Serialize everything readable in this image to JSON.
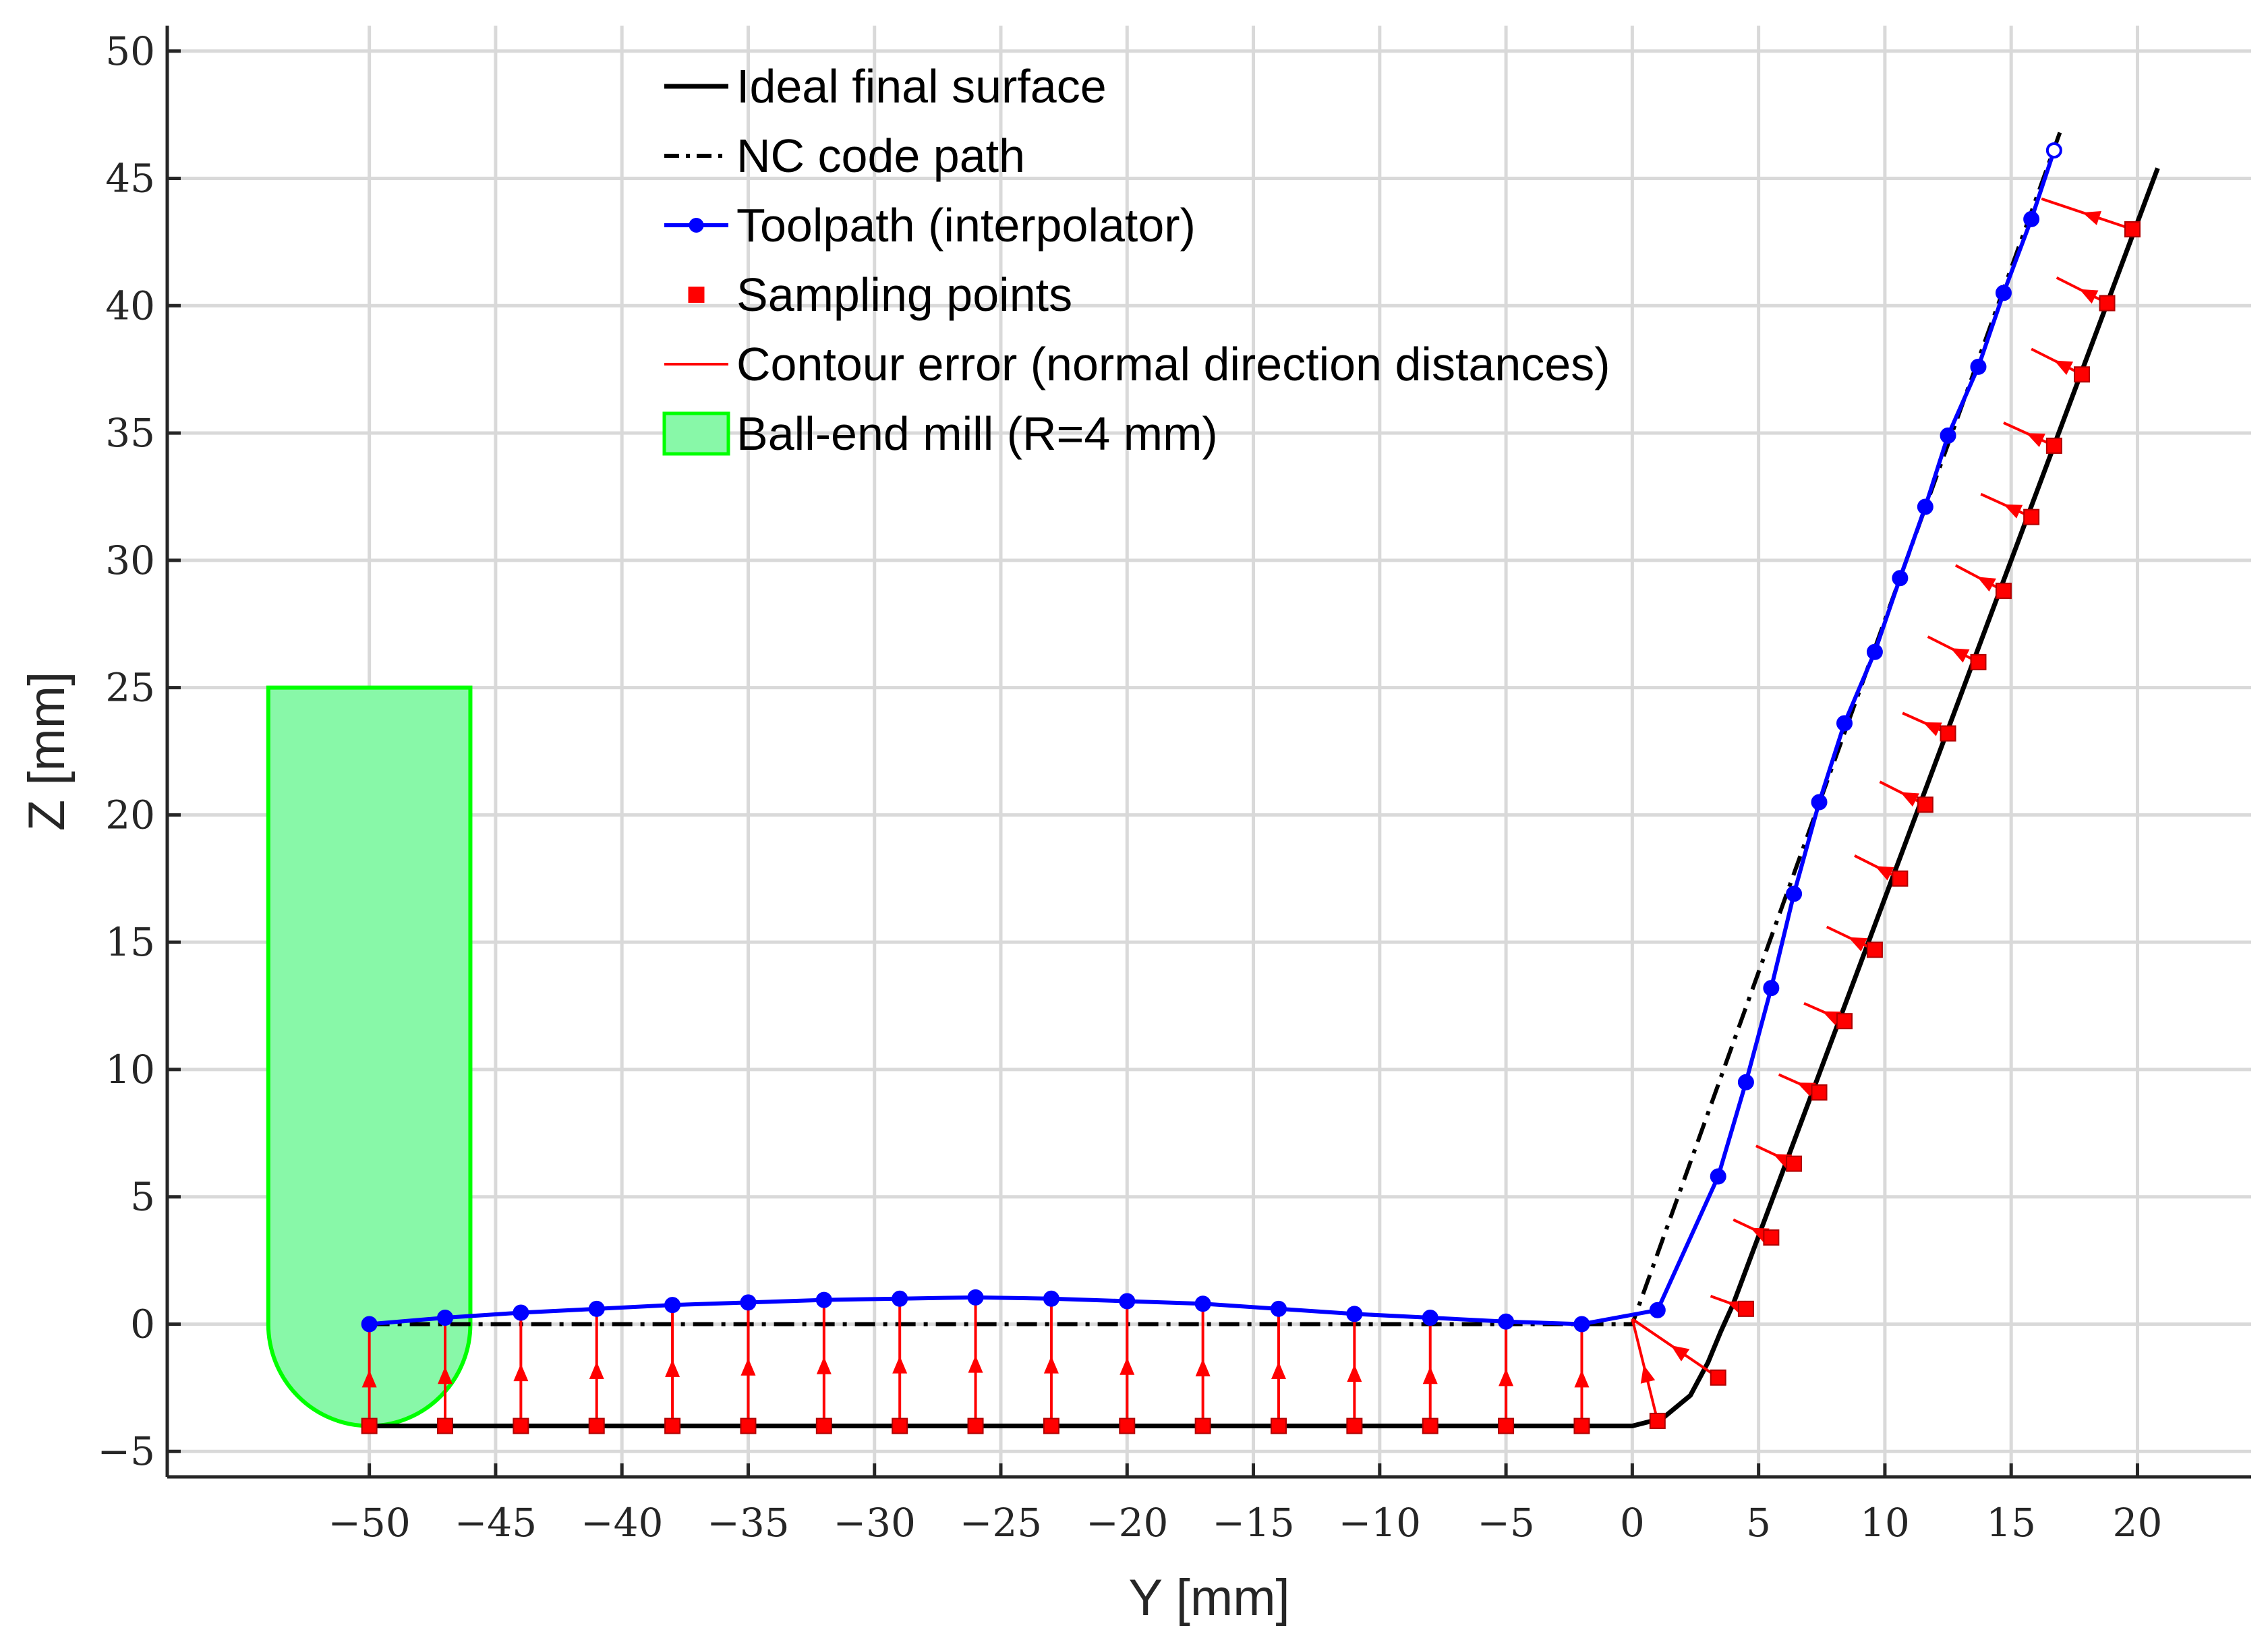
{
  "chart_data": {
    "type": "line",
    "xlabel": "Y [mm]",
    "ylabel": "Z [mm]",
    "xlim": [
      -58,
      24.5
    ],
    "ylim": [
      -6,
      51
    ],
    "grid": true,
    "xticks": [
      -50,
      -45,
      -40,
      -35,
      -30,
      -25,
      -20,
      -15,
      -10,
      -5,
      0,
      5,
      10,
      15,
      20
    ],
    "xtick_labels": [
      "−50",
      "−45",
      "−40",
      "−35",
      "−30",
      "−25",
      "−20",
      "−15",
      "−10",
      "−5",
      "0",
      "5",
      "10",
      "15",
      "20"
    ],
    "yticks": [
      -5,
      0,
      5,
      10,
      15,
      20,
      25,
      30,
      35,
      40,
      45,
      50
    ],
    "ytick_labels": [
      "−5",
      "0",
      "5",
      "10",
      "15",
      "20",
      "25",
      "30",
      "35",
      "40",
      "45",
      "50"
    ],
    "legend_position": "top-center",
    "legend": [
      {
        "label": "Ideal final surface",
        "style": "solid-black"
      },
      {
        "label": "NC code path",
        "style": "dashdot-black"
      },
      {
        "label": "Toolpath (interpolator)",
        "style": "blue-line-circle"
      },
      {
        "label": "Sampling points",
        "style": "red-square"
      },
      {
        "label": "Contour error (normal direction distances)",
        "style": "red-line"
      },
      {
        "label": "Ball-end mill (R=4 mm)",
        "style": "green-patch"
      }
    ],
    "series": [
      {
        "name": "Ideal final surface",
        "color": "#000000",
        "x": [
          -50,
          0,
          1.2,
          2.3,
          3.0,
          3.5,
          4.0,
          20.8
        ],
        "y": [
          -4,
          -4,
          -3.7,
          -2.8,
          -1.5,
          -0.3,
          0.8,
          45.4
        ]
      },
      {
        "name": "NC code path",
        "color": "#000000",
        "x": [
          -50,
          0,
          17
        ],
        "y": [
          0,
          0,
          47
        ]
      },
      {
        "name": "Toolpath (interpolator)",
        "color": "#0000ff",
        "x": [
          -50,
          -47,
          -44,
          -41,
          -38,
          -35,
          -32,
          -29,
          -26,
          -23,
          -20,
          -17,
          -14,
          -11,
          -8,
          -5,
          -2,
          1,
          3.4,
          4.5,
          5.5,
          6.4,
          7.4,
          8.4,
          9.6,
          10.6,
          11.6,
          12.5,
          13.7,
          14.7,
          15.8,
          16.7
        ],
        "y": [
          0,
          0.25,
          0.45,
          0.6,
          0.75,
          0.85,
          0.95,
          1.0,
          1.05,
          1.0,
          0.9,
          0.8,
          0.6,
          0.4,
          0.25,
          0.1,
          0.0,
          0.55,
          5.8,
          9.5,
          13.2,
          16.9,
          20.5,
          23.6,
          26.4,
          29.3,
          32.1,
          34.9,
          37.6,
          40.5,
          43.4,
          46.1
        ]
      },
      {
        "name": "Sampling points",
        "color": "#ff0000",
        "x": [
          -50,
          -47,
          -44,
          -41,
          -38,
          -35,
          -32,
          -29,
          -26,
          -23,
          -20,
          -17,
          -14,
          -11,
          -8,
          -5,
          -2,
          1,
          3.4,
          4.5,
          5.5,
          6.4,
          7.4,
          8.4,
          9.6,
          10.6,
          11.6,
          12.5,
          13.7,
          14.7,
          15.8,
          16.7,
          17.8,
          18.8,
          19.8
        ],
        "y": [
          -4,
          -4,
          -4,
          -4,
          -4,
          -4,
          -4,
          -4,
          -4,
          -4,
          -4,
          -4,
          -4,
          -4,
          -4,
          -4,
          -4,
          -3.8,
          -2.1,
          0.6,
          3.4,
          6.3,
          9.1,
          11.9,
          14.7,
          17.5,
          20.4,
          23.2,
          26.0,
          28.8,
          31.7,
          34.5,
          37.3,
          40.1,
          43.0
        ]
      },
      {
        "name": "Contour error (normal direction distances)",
        "color": "#ff0000",
        "segments": [
          [
            -50,
            -4,
            -50,
            0
          ],
          [
            -47,
            -4,
            -47,
            0.25
          ],
          [
            -44,
            -4,
            -44,
            0.45
          ],
          [
            -41,
            -4,
            -41,
            0.6
          ],
          [
            -38,
            -4,
            -38,
            0.75
          ],
          [
            -35,
            -4,
            -35,
            0.85
          ],
          [
            -32,
            -4,
            -32,
            0.95
          ],
          [
            -29,
            -4,
            -29,
            1.0
          ],
          [
            -26,
            -4,
            -26,
            1.05
          ],
          [
            -23,
            -4,
            -23,
            1.0
          ],
          [
            -20,
            -4,
            -20,
            0.9
          ],
          [
            -17,
            -4,
            -17,
            0.8
          ],
          [
            -14,
            -4,
            -14,
            0.6
          ],
          [
            -11,
            -4,
            -11,
            0.4
          ],
          [
            -8,
            -4,
            -8,
            0.25
          ],
          [
            -5,
            -4,
            -5,
            0.1
          ],
          [
            -2,
            -4,
            -2,
            0.0
          ],
          [
            1,
            -3.8,
            0,
            0.2
          ],
          [
            3.4,
            -2.1,
            0,
            0.2
          ],
          [
            4.5,
            0.6,
            3.1,
            1.1
          ],
          [
            5.5,
            3.4,
            4.0,
            4.1
          ],
          [
            6.4,
            6.3,
            4.9,
            7.0
          ],
          [
            7.4,
            9.1,
            5.8,
            9.8
          ],
          [
            8.4,
            11.9,
            6.8,
            12.6
          ],
          [
            9.6,
            14.7,
            7.7,
            15.6
          ],
          [
            10.6,
            17.5,
            8.8,
            18.4
          ],
          [
            11.6,
            20.4,
            9.8,
            21.3
          ],
          [
            12.5,
            23.2,
            10.7,
            24.0
          ],
          [
            13.7,
            26.0,
            11.7,
            27.0
          ],
          [
            14.7,
            28.8,
            12.8,
            29.8
          ],
          [
            15.8,
            31.7,
            13.8,
            32.6
          ],
          [
            16.7,
            34.5,
            14.7,
            35.4
          ],
          [
            17.8,
            37.3,
            15.8,
            38.3
          ],
          [
            18.8,
            40.1,
            16.8,
            41.1
          ],
          [
            19.8,
            43.0,
            16.2,
            44.2
          ]
        ]
      },
      {
        "name": "Ball-end mill (R=4 mm)",
        "color": "#00ff00",
        "fill": "#88f8a8",
        "center": [
          -50,
          0
        ],
        "radius": 4,
        "top": 25
      }
    ]
  }
}
